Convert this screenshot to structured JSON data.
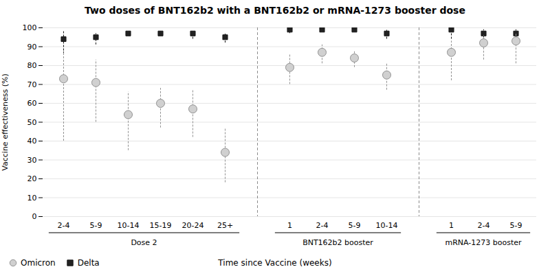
{
  "chart_data": {
    "type": "scatter",
    "title": "Two doses of BNT162b2 with a BNT162b2 or mRNA-1273 booster dose",
    "xlabel": "Time since Vaccine (weeks)",
    "ylabel": "Vaccine effectiveness (%)",
    "groups": [
      {
        "name": "Dose 2",
        "categories": [
          "2-4",
          "5-9",
          "10-14",
          "15-19",
          "20-24",
          "25+"
        ]
      },
      {
        "name": "BNT162b2 booster",
        "categories": [
          "1",
          "2-4",
          "5-9",
          "10-14"
        ]
      },
      {
        "name": "mRNA-1273 booster",
        "categories": [
          "1",
          "2-4",
          "5-9"
        ]
      }
    ],
    "series": [
      {
        "name": "Omicron",
        "color": "#d0d0d0",
        "marker": "circle",
        "values": [
          73,
          71,
          54,
          60,
          57,
          34,
          79,
          87,
          84,
          75,
          87,
          92,
          93
        ],
        "ci_low": [
          40,
          50,
          35,
          47,
          42,
          18,
          70,
          81,
          79,
          67,
          72,
          83,
          81
        ],
        "ci_high": [
          88,
          83,
          66,
          68,
          67,
          47,
          86,
          91,
          88,
          81,
          93,
          96,
          97
        ]
      },
      {
        "name": "Delta",
        "color": "#222222",
        "marker": "square",
        "values": [
          94,
          95,
          97,
          97,
          97,
          95,
          99,
          99,
          99,
          97,
          99,
          97,
          97
        ],
        "ci_low": [
          86,
          91,
          96,
          96,
          94,
          92,
          97,
          98,
          98,
          94,
          94,
          93,
          91
        ],
        "ci_high": [
          98,
          97,
          98,
          98,
          98,
          97,
          100,
          100,
          100,
          99,
          100,
          99,
          99
        ]
      }
    ],
    "ylim": [
      0,
      100
    ],
    "yticks": [
      0,
      10,
      20,
      30,
      40,
      50,
      60,
      70,
      80,
      90,
      100
    ],
    "grid": true,
    "legend": "lower left"
  }
}
